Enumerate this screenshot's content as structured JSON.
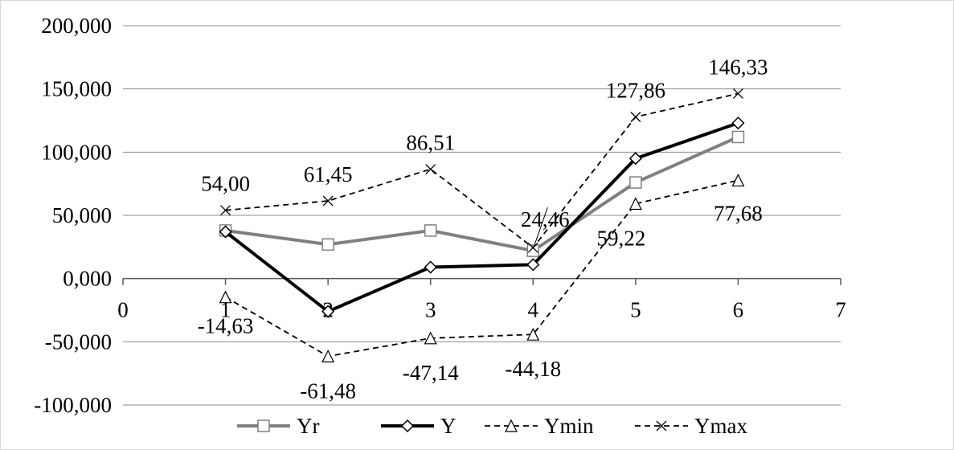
{
  "chart_data": {
    "type": "line",
    "x": [
      1,
      2,
      3,
      4,
      5,
      6
    ],
    "xlim": [
      0,
      7
    ],
    "ylim": [
      -100000,
      200000
    ],
    "x_ticks": [
      "0",
      "1",
      "2",
      "3",
      "4",
      "5",
      "6",
      "7"
    ],
    "y_ticks": [
      "200,000",
      "150,000",
      "100,000",
      "50,000",
      "0,000",
      "-50,000",
      "-100,000"
    ],
    "grid": "horizontal",
    "legend_position": "bottom",
    "series": [
      {
        "name": "Yr",
        "values": [
          38,
          27,
          38,
          22,
          76,
          112
        ],
        "color": "#808080",
        "marker": "square",
        "line": "solid"
      },
      {
        "name": "Y",
        "values": [
          37,
          -26,
          9,
          11,
          95,
          123
        ],
        "color": "#000000",
        "marker": "diamond",
        "line": "solid"
      },
      {
        "name": "Ymin",
        "values": [
          -14.63,
          -61.48,
          -47.14,
          -44.18,
          59.22,
          77.68
        ],
        "color": "#000000",
        "marker": "triangle",
        "line": "dashed",
        "labels": [
          "-14,63",
          "-61,48",
          "-47,14",
          "-44,18",
          "59,22",
          "77,68"
        ]
      },
      {
        "name": "Ymax",
        "values": [
          54.0,
          61.45,
          86.51,
          24.46,
          127.86,
          146.33
        ],
        "color": "#000000",
        "marker": "x",
        "line": "dashed",
        "labels": [
          "54,00",
          "61,45",
          "86,51",
          "24,46",
          "127,86",
          "146,33"
        ]
      }
    ]
  }
}
